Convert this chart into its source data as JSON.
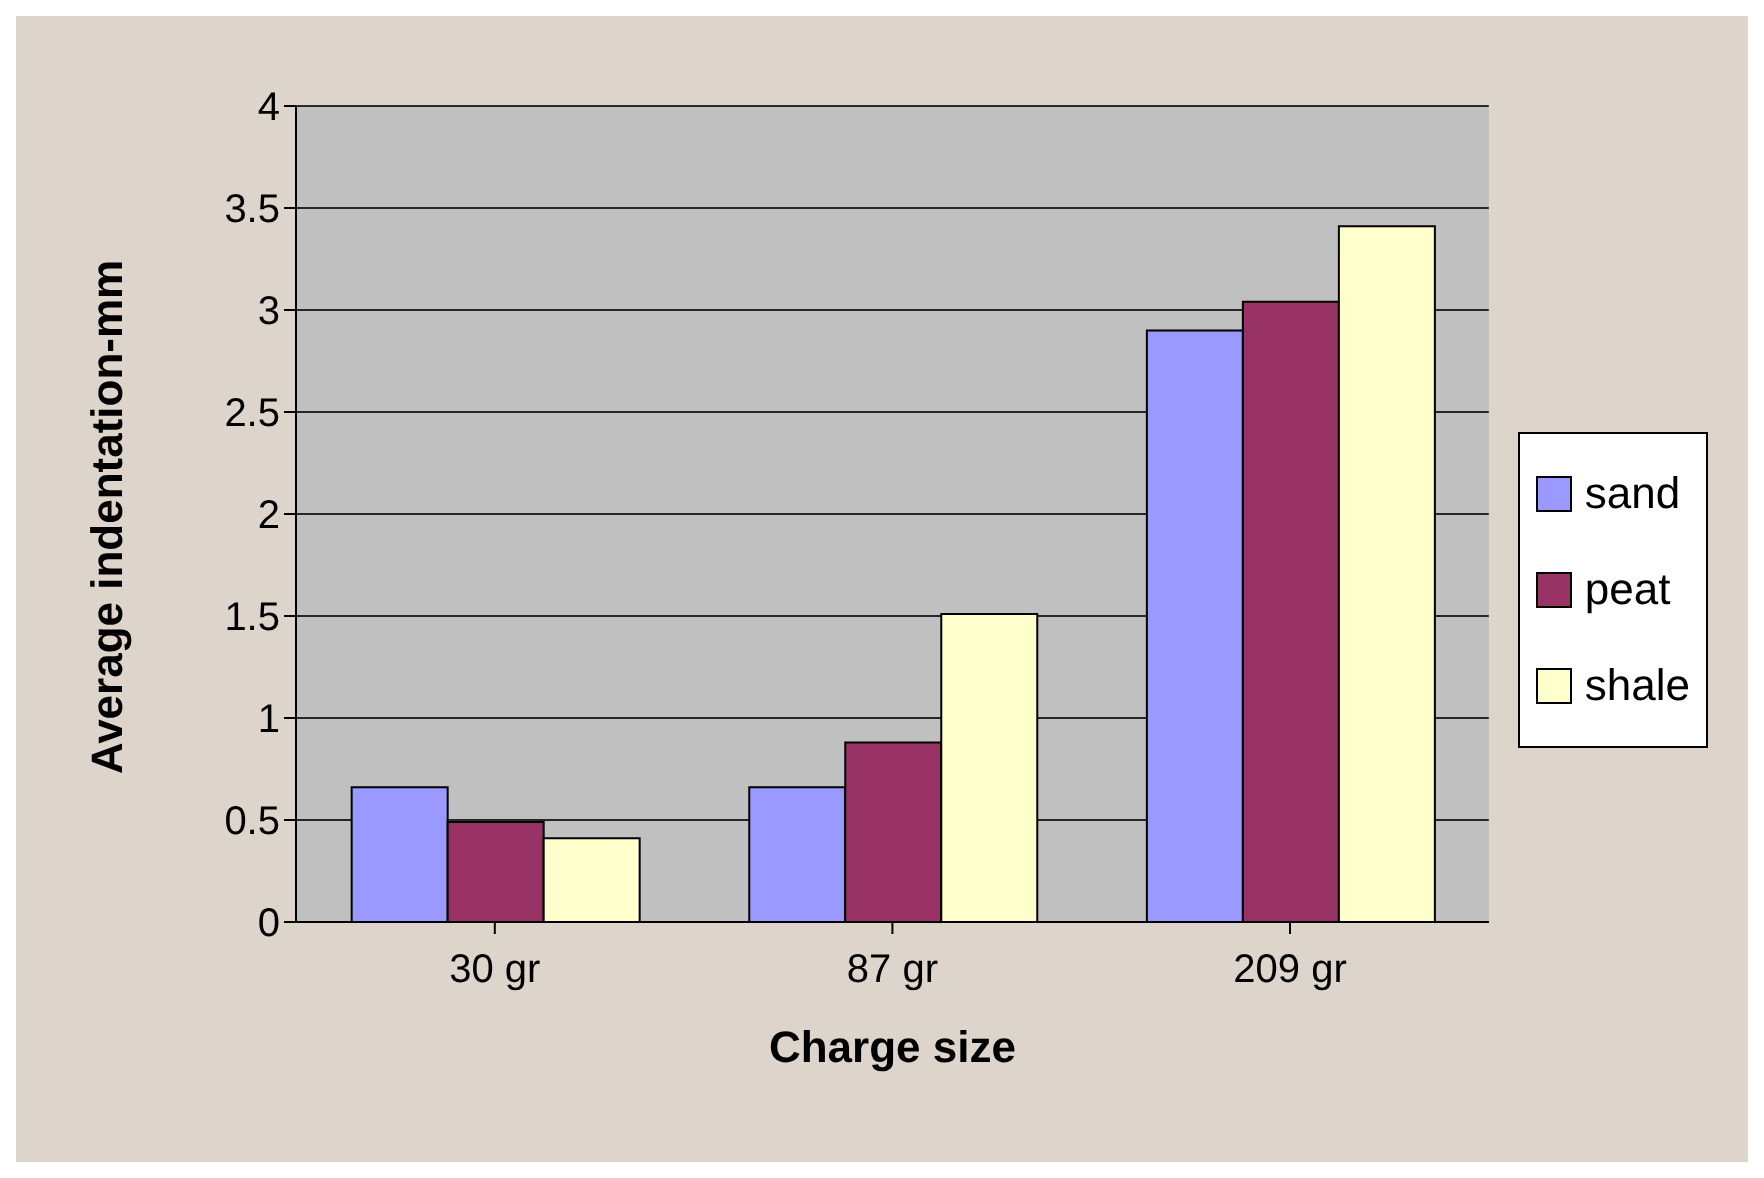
{
  "chart_data": {
    "type": "bar",
    "xlabel": "Charge size",
    "ylabel": "Average indentation-mm",
    "categories": [
      "30 gr",
      "87 gr",
      "209 gr"
    ],
    "series": [
      {
        "name": "sand",
        "color": "#9999ff",
        "values": [
          0.66,
          0.66,
          2.9
        ]
      },
      {
        "name": "peat",
        "color": "#993366",
        "values": [
          0.49,
          0.88,
          3.04
        ]
      },
      {
        "name": "shale",
        "color": "#ffffcc",
        "values": [
          0.41,
          1.51,
          3.41
        ]
      }
    ],
    "ylim": [
      0,
      4
    ],
    "yticks": [
      0,
      0.5,
      1,
      1.5,
      2,
      2.5,
      3,
      3.5,
      4
    ],
    "grid": "y",
    "legend": "right"
  }
}
